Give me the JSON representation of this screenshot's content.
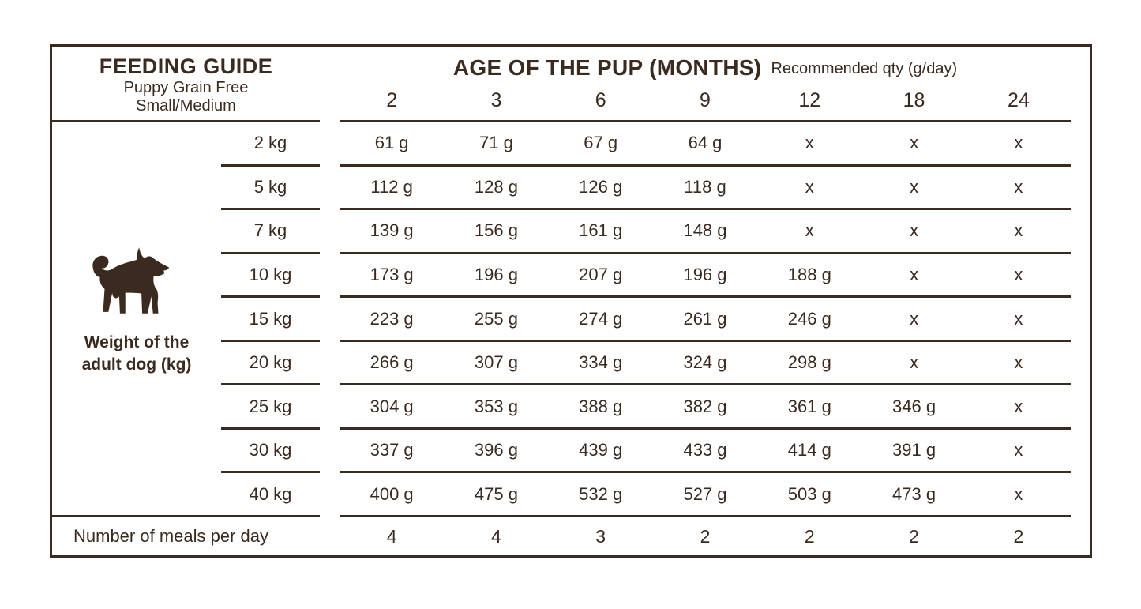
{
  "header": {
    "title": "FEEDING GUIDE",
    "subtitle_line1": "Puppy Grain Free",
    "subtitle_line2": "Small/Medium",
    "age_title": "AGE OF THE PUP (MONTHS)",
    "age_subtitle": "Recommended qty (g/day)",
    "age_columns": [
      "2",
      "3",
      "6",
      "9",
      "12",
      "18",
      "24"
    ]
  },
  "left": {
    "dog_icon": "dog-silhouette-icon",
    "axis_label_line1": "Weight of the",
    "axis_label_line2": "adult dog (kg)"
  },
  "rows": [
    {
      "weight": "2 kg",
      "values": [
        "61 g",
        "71 g",
        "67 g",
        "64 g",
        "x",
        "x",
        "x"
      ]
    },
    {
      "weight": "5 kg",
      "values": [
        "112 g",
        "128 g",
        "126 g",
        "118 g",
        "x",
        "x",
        "x"
      ]
    },
    {
      "weight": "7 kg",
      "values": [
        "139 g",
        "156 g",
        "161 g",
        "148 g",
        "x",
        "x",
        "x"
      ]
    },
    {
      "weight": "10 kg",
      "values": [
        "173 g",
        "196 g",
        "207 g",
        "196 g",
        "188 g",
        "x",
        "x"
      ]
    },
    {
      "weight": "15 kg",
      "values": [
        "223 g",
        "255 g",
        "274 g",
        "261 g",
        "246 g",
        "x",
        "x"
      ]
    },
    {
      "weight": "20 kg",
      "values": [
        "266 g",
        "307 g",
        "334 g",
        "324 g",
        "298 g",
        "x",
        "x"
      ]
    },
    {
      "weight": "25 kg",
      "values": [
        "304 g",
        "353 g",
        "388 g",
        "382 g",
        "361 g",
        "346 g",
        "x"
      ]
    },
    {
      "weight": "30 kg",
      "values": [
        "337 g",
        "396 g",
        "439 g",
        "433 g",
        "414 g",
        "391 g",
        "x"
      ]
    },
    {
      "weight": "40 kg",
      "values": [
        "400 g",
        "475 g",
        "532 g",
        "527 g",
        "503 g",
        "473 g",
        "x"
      ]
    }
  ],
  "footer": {
    "label": "Number of meals per day",
    "values": [
      "4",
      "4",
      "3",
      "2",
      "2",
      "2",
      "2"
    ]
  },
  "colors": {
    "ink": "#3B2A1F",
    "background": "#FFFFFF"
  }
}
